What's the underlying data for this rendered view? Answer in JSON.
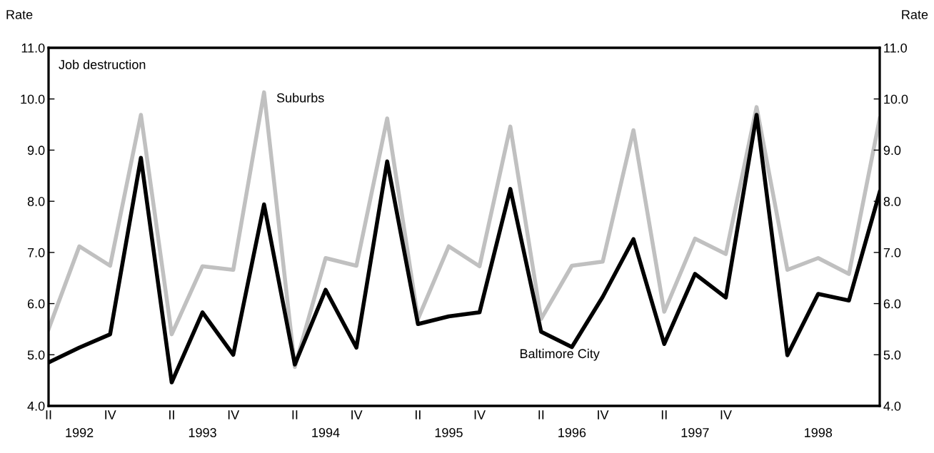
{
  "chart_data": {
    "type": "line",
    "ylabel": "Rate",
    "y2label": "Rate",
    "annotations": [
      "Job destruction"
    ],
    "categories": [
      "II",
      "1992",
      "IV",
      null,
      "II",
      "1993",
      "IV",
      null,
      "II",
      "1994",
      "IV",
      null,
      "II",
      "1995",
      "IV",
      null,
      "II",
      "1996",
      "IV",
      null,
      "II",
      "1997",
      "IV",
      null,
      null,
      "1998",
      null,
      null
    ],
    "series": [
      {
        "name": "Suburbs",
        "color": "#c0c0c0",
        "values": [
          5.5,
          7.12,
          6.74,
          9.69,
          5.4,
          6.73,
          6.66,
          10.13,
          4.76,
          6.89,
          6.74,
          9.62,
          5.7,
          7.12,
          6.73,
          9.46,
          5.7,
          6.74,
          6.82,
          9.39,
          5.84,
          7.27,
          6.97,
          9.84,
          6.66,
          6.89,
          6.58,
          9.62
        ]
      },
      {
        "name": "Baltimore City",
        "color": "#000000",
        "values": [
          4.85,
          5.14,
          5.4,
          8.85,
          4.46,
          5.83,
          5.0,
          7.94,
          4.81,
          6.27,
          5.14,
          8.78,
          5.6,
          5.75,
          5.83,
          8.24,
          5.45,
          5.15,
          6.13,
          7.26,
          5.21,
          6.58,
          6.12,
          9.69,
          4.99,
          6.19,
          6.06,
          8.18
        ]
      }
    ],
    "ylim": [
      4.0,
      11.0
    ],
    "yticks": [
      {
        "value": 4,
        "label": "4.0"
      },
      {
        "value": 5,
        "label": "5.0"
      },
      {
        "value": 6,
        "label": "6.0"
      },
      {
        "value": 7,
        "label": "7.0"
      },
      {
        "value": 8,
        "label": "8.0"
      },
      {
        "value": 9,
        "label": "9.0"
      },
      {
        "value": 10,
        "label": "10.0"
      },
      {
        "value": 11,
        "label": "11.0"
      }
    ],
    "y2lim": [
      4.0,
      11.0
    ],
    "y2ticks": [
      {
        "value": 4,
        "label": "4.0"
      },
      {
        "value": 5,
        "label": "5.0"
      },
      {
        "value": 6,
        "label": "6.0"
      },
      {
        "value": 7,
        "label": "7.0"
      },
      {
        "value": 8,
        "label": "8.0"
      },
      {
        "value": 9,
        "label": "9.0"
      },
      {
        "value": 10,
        "label": "10.0"
      },
      {
        "value": 11,
        "label": "11.0"
      }
    ],
    "grid": false,
    "legend": false,
    "marker": "none",
    "line_style": "solid"
  }
}
